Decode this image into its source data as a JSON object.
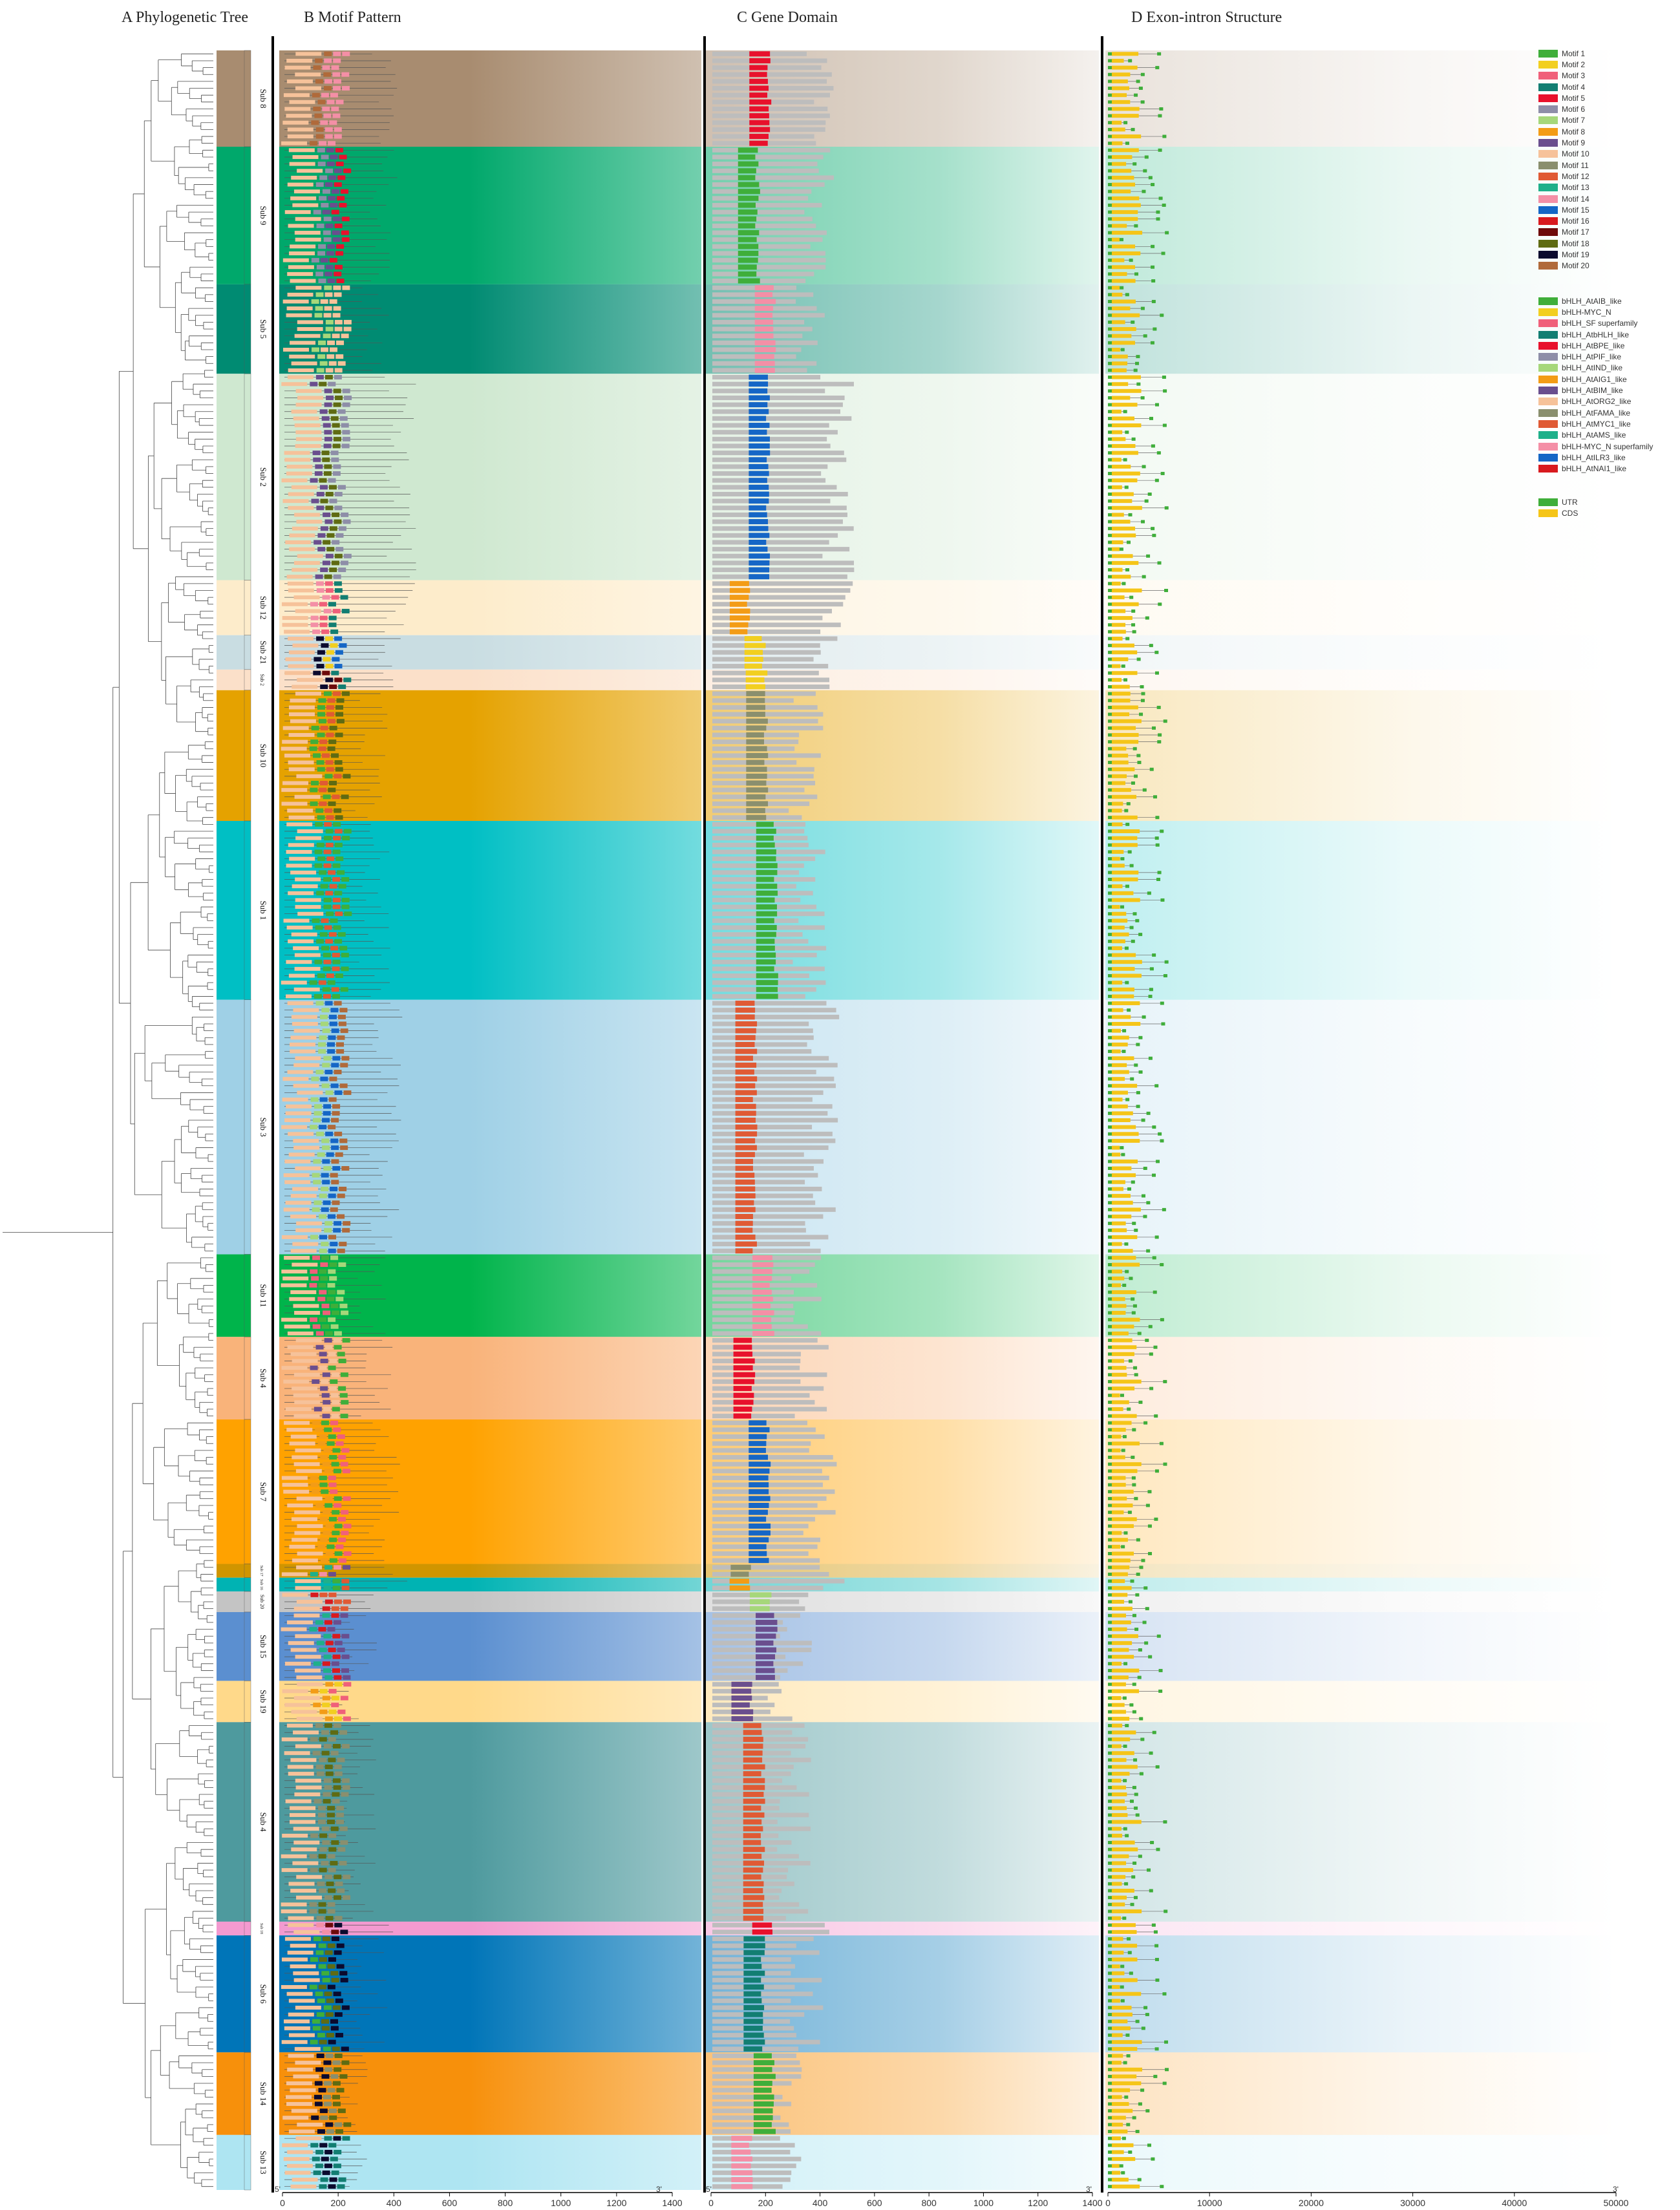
{
  "panels": {
    "a": "A    Phylogenetic Tree",
    "b": "B    Motif Pattern",
    "c": "C    Gene Domain",
    "d": "D    Exon-intron Structure"
  },
  "axes": {
    "motif_ticks": [
      "0",
      "200",
      "400",
      "600",
      "800",
      "1000",
      "1200",
      "1400"
    ],
    "domain_ticks": [
      "0",
      "200",
      "400",
      "600",
      "800",
      "1000",
      "1200",
      "1400"
    ],
    "exon_ticks": [
      "0",
      "10000",
      "20000",
      "30000",
      "40000",
      "50000"
    ],
    "five_prime": "5'",
    "three_prime": "3'"
  },
  "subfamilies": [
    {
      "label": "Sub 8",
      "rows": 14,
      "color": "#a88c70"
    },
    {
      "label": "Sub 9",
      "rows": 20,
      "color": "#00a86b"
    },
    {
      "label": "Sub 5",
      "rows": 13,
      "color": "#008b72"
    },
    {
      "label": "Sub 2",
      "rows": 30,
      "color": "#cfe8d0"
    },
    {
      "label": "Sub 12",
      "rows": 8,
      "color": "#fdeccb"
    },
    {
      "label": "Sub 21",
      "rows": 5,
      "color": "#c9dde2"
    },
    {
      "label": "Sub 2",
      "rows": 3,
      "color": "#fbe0c9"
    },
    {
      "label": "Sub 10",
      "rows": 19,
      "color": "#e5a200"
    },
    {
      "label": "Sub 1",
      "rows": 26,
      "color": "#00bfc4"
    },
    {
      "label": "Sub 3",
      "rows": 37,
      "color": "#9fd0e6"
    },
    {
      "label": "Sub 11",
      "rows": 12,
      "color": "#00b44b"
    },
    {
      "label": "Sub 4",
      "rows": 12,
      "color": "#f9b37a"
    },
    {
      "label": "Sub 7",
      "rows": 21,
      "color": "#ffa200"
    },
    {
      "label": "Sub 17",
      "rows": 2,
      "color": "#d09500"
    },
    {
      "label": "Sub 16",
      "rows": 2,
      "color": "#00b3b3"
    },
    {
      "label": "Sub 20",
      "rows": 3,
      "color": "#c4c4c4"
    },
    {
      "label": "Sub 15",
      "rows": 10,
      "color": "#5b8fd0"
    },
    {
      "label": "Sub 19",
      "rows": 6,
      "color": "#ffd98a"
    },
    {
      "label": "Sub 4",
      "rows": 29,
      "color": "#4e9a9e"
    },
    {
      "label": "Sub 18",
      "rows": 2,
      "color": "#f39ad0"
    },
    {
      "label": "Sub 6",
      "rows": 17,
      "color": "#0075b8"
    },
    {
      "label": "Sub 14",
      "rows": 12,
      "color": "#f7900b"
    },
    {
      "label": "Sub 13",
      "rows": 8,
      "color": "#aee5f2"
    }
  ],
  "motif_legend": [
    {
      "label": "Motif 1",
      "color": "#3fae3a"
    },
    {
      "label": "Motif 2",
      "color": "#f2cf20"
    },
    {
      "label": "Motif 3",
      "color": "#f0607a"
    },
    {
      "label": "Motif 4",
      "color": "#127e72"
    },
    {
      "label": "Motif 5",
      "color": "#e8112c"
    },
    {
      "label": "Motif 6",
      "color": "#8e8ea8"
    },
    {
      "label": "Motif 7",
      "color": "#a6d77a"
    },
    {
      "label": "Motif 8",
      "color": "#f39c16"
    },
    {
      "label": "Motif 9",
      "color": "#6a4e8e"
    },
    {
      "label": "Motif 10",
      "color": "#f6c29a"
    },
    {
      "label": "Motif 11",
      "color": "#8a8f6e"
    },
    {
      "label": "Motif 12",
      "color": "#e05a34"
    },
    {
      "label": "Motif 13",
      "color": "#1fb08a"
    },
    {
      "label": "Motif 14",
      "color": "#f48fa6"
    },
    {
      "label": "Motif 15",
      "color": "#1566c6"
    },
    {
      "label": "Motif 16",
      "color": "#d81a1f"
    },
    {
      "label": "Motif 17",
      "color": "#6e0a0a"
    },
    {
      "label": "Motif 18",
      "color": "#5f6b12"
    },
    {
      "label": "Motif 19",
      "color": "#0b0a2e"
    },
    {
      "label": "Motif 20",
      "color": "#b06a3a"
    }
  ],
  "domain_legend": [
    {
      "label": "bHLH_AtAIB_like",
      "color": "#3fae3a"
    },
    {
      "label": "bHLH-MYC_N",
      "color": "#f2cf20"
    },
    {
      "label": "bHLH_SF superfamily",
      "color": "#f0607a"
    },
    {
      "label": "bHLH_AtbHLH_like",
      "color": "#127e72"
    },
    {
      "label": "bHLH_AtBPE_like",
      "color": "#e8112c"
    },
    {
      "label": "bHLH_AtPIF_like",
      "color": "#8e8ea8"
    },
    {
      "label": "bHLH_AtIND_like",
      "color": "#a6d77a"
    },
    {
      "label": "bHLH_AtAIG1_like",
      "color": "#f39c16"
    },
    {
      "label": "bHLH_AtBIM_like",
      "color": "#6a4e8e"
    },
    {
      "label": "bHLH_AtORG2_like",
      "color": "#f6c29a"
    },
    {
      "label": "bHLH_AtFAMA_like",
      "color": "#8a8f6e"
    },
    {
      "label": "bHLH_AtMYC1_like",
      "color": "#e05a34"
    },
    {
      "label": "bHLH_AtAMS_like",
      "color": "#1fb08a"
    },
    {
      "label": "bHLH-MYC_N superfamily",
      "color": "#f48fa6"
    },
    {
      "label": "bHLH_AtILR3_like",
      "color": "#1566c6"
    },
    {
      "label": "bHLH_AtNAI1_like",
      "color": "#d81a1f"
    }
  ],
  "structure_legend": [
    {
      "label": "UTR",
      "color": "#3fae3a"
    },
    {
      "label": "CDS",
      "color": "#f5c518"
    }
  ]
}
